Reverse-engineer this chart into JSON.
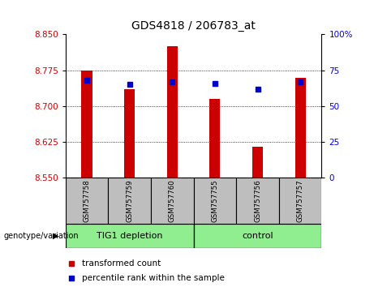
{
  "title": "GDS4818 / 206783_at",
  "samples": [
    "GSM757758",
    "GSM757759",
    "GSM757760",
    "GSM757755",
    "GSM757756",
    "GSM757757"
  ],
  "bar_values": [
    8.775,
    8.735,
    8.825,
    8.715,
    8.615,
    8.76
  ],
  "percentile_values": [
    68,
    65,
    67,
    66,
    62,
    67
  ],
  "ymin": 8.55,
  "ymax": 8.85,
  "yticks": [
    8.55,
    8.625,
    8.7,
    8.775,
    8.85
  ],
  "right_yticks": [
    0,
    25,
    50,
    75,
    100
  ],
  "bar_color": "#CC0000",
  "dot_color": "#0000CC",
  "group_color": "#90EE90",
  "label_bg": "#BEBEBE",
  "legend_red_label": "transformed count",
  "legend_blue_label": "percentile rank within the sample",
  "genotype_label": "genotype/variation",
  "group1_label": "TIG1 depletion",
  "group2_label": "control",
  "bar_width": 0.25
}
